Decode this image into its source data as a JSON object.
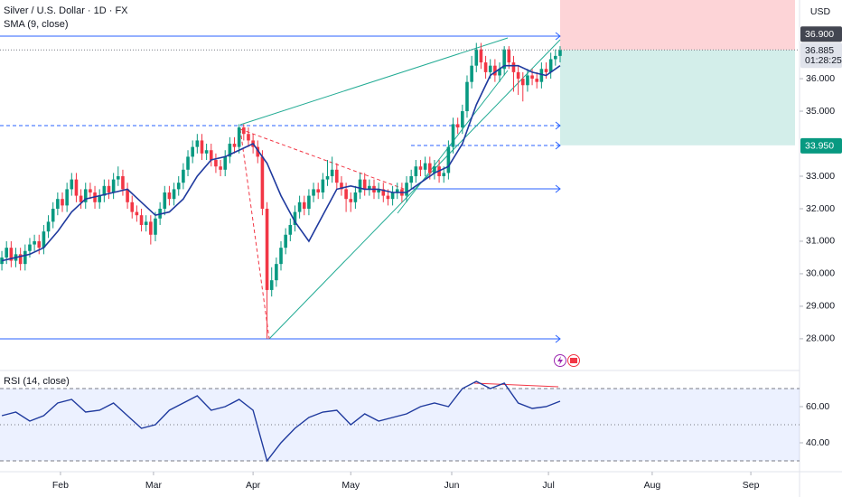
{
  "chart_data": [
    {
      "type": "candlestick",
      "title": "Silver / U.S. Dollar · 1D · FX",
      "currency": "USD",
      "up_color": "#089981",
      "down_color": "#f23645",
      "x": [
        0,
        1,
        2,
        3,
        4,
        5,
        6,
        7,
        8,
        9,
        10,
        11,
        12,
        13,
        14,
        15,
        16,
        17,
        18,
        19,
        20,
        21,
        22,
        23,
        24,
        25,
        26,
        27,
        28,
        29,
        30,
        31,
        32,
        33,
        34,
        35,
        36,
        37,
        38,
        39,
        40,
        41,
        42,
        43,
        44,
        45,
        46,
        47,
        48,
        49,
        50,
        51,
        52,
        53,
        54,
        55,
        56,
        57,
        58,
        59,
        60,
        61,
        62,
        63,
        64,
        65,
        66,
        67,
        68,
        69,
        70,
        71,
        72,
        73,
        74,
        75,
        76,
        77,
        78,
        79,
        80,
        81,
        82,
        83,
        84,
        85,
        86,
        87,
        88,
        89,
        90,
        91,
        92,
        93,
        94,
        95,
        96,
        97,
        98,
        99,
        100,
        101,
        102,
        103,
        104,
        105,
        106,
        107,
        108,
        109,
        110,
        111,
        112,
        113,
        114,
        115,
        116,
        117,
        118,
        119,
        120
      ],
      "open": [
        30.3,
        30.5,
        30.8,
        30.4,
        30.6,
        30.3,
        30.7,
        30.9,
        31.0,
        30.8,
        31.3,
        31.6,
        32.0,
        32.3,
        32.1,
        32.6,
        32.9,
        32.4,
        32.2,
        32.6,
        32.5,
        32.2,
        32.4,
        32.7,
        32.5,
        32.9,
        33.0,
        32.6,
        32.2,
        31.9,
        31.8,
        31.5,
        31.6,
        31.2,
        31.7,
        32.0,
        32.5,
        32.3,
        32.6,
        32.8,
        33.2,
        33.6,
        33.9,
        34.1,
        33.7,
        33.8,
        33.5,
        33.3,
        33.2,
        33.6,
        34.0,
        33.9,
        34.5,
        34.3,
        34.1,
        33.9,
        33.6,
        32.0,
        29.5,
        29.8,
        30.3,
        30.8,
        31.2,
        31.5,
        31.9,
        32.2,
        32.0,
        32.4,
        32.6,
        32.5,
        32.9,
        33.0,
        33.2,
        32.8,
        32.6,
        32.3,
        32.2,
        32.5,
        32.9,
        32.6,
        32.7,
        32.5,
        32.6,
        32.4,
        32.3,
        32.5,
        32.6,
        32.4,
        32.8,
        33.0,
        33.3,
        33.2,
        33.4,
        33.1,
        33.3,
        33.0,
        33.1,
        33.9,
        34.6,
        34.5,
        35.0,
        35.9,
        36.4,
        36.9,
        36.5,
        36.2,
        36.4,
        36.1,
        36.3,
        36.9,
        36.5,
        36.2,
        36.0,
        35.8,
        36.1,
        36.0,
        35.9,
        36.3,
        36.2,
        36.6,
        36.7
      ],
      "high": [
        30.7,
        31.0,
        31.0,
        30.8,
        30.8,
        30.9,
        31.1,
        31.2,
        31.2,
        31.5,
        31.8,
        32.2,
        32.5,
        32.5,
        32.8,
        33.1,
        33.1,
        32.6,
        32.8,
        32.8,
        32.7,
        32.6,
        32.9,
        32.9,
        33.1,
        33.3,
        33.2,
        32.8,
        32.4,
        32.1,
        32.0,
        31.8,
        31.8,
        31.9,
        32.2,
        32.7,
        32.7,
        32.8,
        33.0,
        33.4,
        33.8,
        34.1,
        34.3,
        34.3,
        34.0,
        34.0,
        33.7,
        33.5,
        33.8,
        34.2,
        34.2,
        34.6,
        34.6,
        34.5,
        34.3,
        34.1,
        33.8,
        32.2,
        30.2,
        30.5,
        31.0,
        31.4,
        31.7,
        32.1,
        32.4,
        32.4,
        32.6,
        32.8,
        32.8,
        33.1,
        33.5,
        33.6,
        33.4,
        33.0,
        32.8,
        32.5,
        32.7,
        33.1,
        33.1,
        32.9,
        32.9,
        32.8,
        32.8,
        32.6,
        32.7,
        32.8,
        32.8,
        33.0,
        33.2,
        33.5,
        33.5,
        33.6,
        33.6,
        33.5,
        33.5,
        33.3,
        34.1,
        34.8,
        34.8,
        35.2,
        36.1,
        36.7,
        37.1,
        37.1,
        36.7,
        36.6,
        36.6,
        36.5,
        37.0,
        37.0,
        36.7,
        36.4,
        36.2,
        36.3,
        36.3,
        36.2,
        36.5,
        36.5,
        36.8,
        36.9,
        37.0
      ],
      "low": [
        30.1,
        30.3,
        30.2,
        30.2,
        30.1,
        30.1,
        30.5,
        30.7,
        30.6,
        30.6,
        31.1,
        31.4,
        31.8,
        31.9,
        31.9,
        32.4,
        32.2,
        32.0,
        32.0,
        32.3,
        32.0,
        32.0,
        32.2,
        32.3,
        32.3,
        32.7,
        32.4,
        32.0,
        31.7,
        31.6,
        31.3,
        31.3,
        30.9,
        31.0,
        31.5,
        31.8,
        32.1,
        32.1,
        32.4,
        32.6,
        33.0,
        33.4,
        33.7,
        33.5,
        33.5,
        33.3,
        33.1,
        33.0,
        33.0,
        33.4,
        33.7,
        33.7,
        34.1,
        33.9,
        33.7,
        33.4,
        31.8,
        28.0,
        29.3,
        29.6,
        30.1,
        30.6,
        31.0,
        31.3,
        31.7,
        31.8,
        31.8,
        32.2,
        32.3,
        32.3,
        32.7,
        32.8,
        32.6,
        32.4,
        31.9,
        31.9,
        32.0,
        32.3,
        32.4,
        32.4,
        32.3,
        32.3,
        32.2,
        32.1,
        32.1,
        32.3,
        32.2,
        32.2,
        32.6,
        32.8,
        33.0,
        33.0,
        32.9,
        32.9,
        32.8,
        32.8,
        32.9,
        33.7,
        34.3,
        34.3,
        34.8,
        35.7,
        36.2,
        36.3,
        36.0,
        36.0,
        35.9,
        35.9,
        36.1,
        36.3,
        35.6,
        35.5,
        35.3,
        35.6,
        35.8,
        35.7,
        35.7,
        36.0,
        36.0,
        36.4,
        36.5
      ],
      "close": [
        30.5,
        30.8,
        30.4,
        30.6,
        30.3,
        30.7,
        30.9,
        31.0,
        30.8,
        31.3,
        31.6,
        32.0,
        32.3,
        32.1,
        32.6,
        32.9,
        32.4,
        32.2,
        32.6,
        32.5,
        32.2,
        32.4,
        32.7,
        32.5,
        32.9,
        33.0,
        32.6,
        32.2,
        31.9,
        31.8,
        31.5,
        31.6,
        31.2,
        31.7,
        32.0,
        32.5,
        32.3,
        32.6,
        32.8,
        33.2,
        33.6,
        33.9,
        34.1,
        33.7,
        33.8,
        33.5,
        33.3,
        33.2,
        33.6,
        34.0,
        33.9,
        34.5,
        34.3,
        34.1,
        33.9,
        33.6,
        32.0,
        29.5,
        29.8,
        30.3,
        30.8,
        31.2,
        31.5,
        31.9,
        32.2,
        32.0,
        32.4,
        32.6,
        32.5,
        32.9,
        33.0,
        33.2,
        32.8,
        32.6,
        32.3,
        32.2,
        32.5,
        32.9,
        32.6,
        32.7,
        32.5,
        32.6,
        32.4,
        32.3,
        32.5,
        32.6,
        32.4,
        32.8,
        33.0,
        33.3,
        33.2,
        33.4,
        33.1,
        33.3,
        33.0,
        33.1,
        33.9,
        34.6,
        34.5,
        35.0,
        35.9,
        36.4,
        36.9,
        36.5,
        36.2,
        36.4,
        36.1,
        36.3,
        36.9,
        36.5,
        36.2,
        36.0,
        35.8,
        36.1,
        36.0,
        35.9,
        36.3,
        36.2,
        36.6,
        36.7,
        36.88
      ],
      "overlays": [
        {
          "name": "SMA (9, close)",
          "color": "#1f3a9e",
          "x": [
            0,
            3,
            6,
            9,
            12,
            15,
            18,
            21,
            24,
            27,
            30,
            33,
            36,
            39,
            42,
            45,
            48,
            51,
            54,
            57,
            60,
            63,
            66,
            69,
            72,
            75,
            78,
            81,
            84,
            87,
            90,
            93,
            96,
            99,
            102,
            105,
            108,
            111,
            114,
            117,
            120
          ],
          "values": [
            30.4,
            30.5,
            30.6,
            30.8,
            31.3,
            31.9,
            32.3,
            32.4,
            32.5,
            32.6,
            32.2,
            31.8,
            31.9,
            32.3,
            33.0,
            33.5,
            33.6,
            33.8,
            34.0,
            33.4,
            32.4,
            31.6,
            31.0,
            31.8,
            32.6,
            32.7,
            32.6,
            32.6,
            32.5,
            32.5,
            32.8,
            33.1,
            33.3,
            34.0,
            35.2,
            36.1,
            36.4,
            36.4,
            36.2,
            36.1,
            36.4
          ]
        }
      ],
      "xlim": [
        -0.4,
        170.5
      ],
      "xticks": [
        {
          "value": 12.6,
          "label": "Feb"
        },
        {
          "value": 32.6,
          "label": "Mar"
        },
        {
          "value": 54.0,
          "label": "Apr"
        },
        {
          "value": 75.0,
          "label": "May"
        },
        {
          "value": 96.7,
          "label": "Jun"
        },
        {
          "value": 117.5,
          "label": "Jul"
        },
        {
          "value": 139.8,
          "label": "Aug"
        },
        {
          "value": 161.0,
          "label": "Sep"
        }
      ],
      "ylim": [
        27.08,
        38.42
      ],
      "yticks": [
        {
          "value": 28,
          "label": "28.000"
        },
        {
          "value": 29,
          "label": "29.000"
        },
        {
          "value": 30,
          "label": "30.000"
        },
        {
          "value": 31,
          "label": "31.000"
        },
        {
          "value": 32,
          "label": "32.000"
        },
        {
          "value": 33,
          "label": "33.000"
        },
        {
          "value": 35,
          "label": "35.000"
        },
        {
          "value": 36,
          "label": "36.000"
        }
      ],
      "price_labels": [
        {
          "value": 36.9,
          "label": "36.900"
        },
        {
          "value": 36.885,
          "label": "36.885"
        },
        {
          "value": 33.95,
          "label": "33.950"
        }
      ],
      "countdown": "01:28:25"
    },
    {
      "type": "line",
      "title": "RSI (14, close)",
      "color": "#1f3a9e",
      "x": [
        0,
        3,
        6,
        9,
        12,
        15,
        18,
        21,
        24,
        27,
        30,
        33,
        36,
        39,
        42,
        45,
        48,
        51,
        54,
        57,
        60,
        63,
        66,
        69,
        72,
        75,
        78,
        81,
        84,
        87,
        90,
        93,
        96,
        99,
        102,
        105,
        108,
        111,
        114,
        117,
        120
      ],
      "values": [
        55,
        57,
        52,
        55,
        62,
        64,
        57,
        58,
        62,
        55,
        48,
        50,
        58,
        62,
        66,
        58,
        60,
        64,
        58,
        30,
        40,
        48,
        54,
        57,
        58,
        50,
        56,
        52,
        54,
        56,
        60,
        62,
        60,
        70,
        74,
        70,
        73,
        62,
        59,
        60,
        63
      ],
      "levels": [
        70,
        50,
        30
      ],
      "ylim": [
        25,
        79
      ],
      "yticks": [
        {
          "value": 40,
          "label": "40.00"
        },
        {
          "value": 60,
          "label": "60.00"
        }
      ]
    }
  ]
}
